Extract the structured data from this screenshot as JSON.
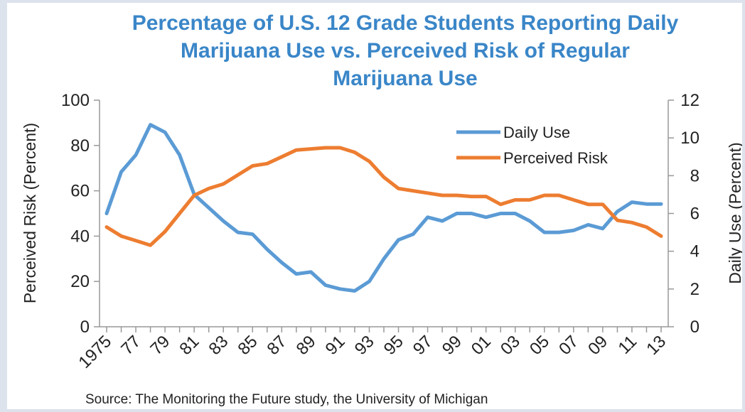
{
  "chart_data": {
    "type": "line",
    "title_lines": [
      "Percentage of U.S. 12 Grade Students Reporting Daily",
      "Marijuana Use vs. Perceived Risk of Regular",
      "Marijuana Use"
    ],
    "ylabel": "Perceived Risk (Percent)",
    "y2label": "Daily Use (Percent)",
    "ylim": [
      0,
      100
    ],
    "y2lim": [
      0,
      12
    ],
    "yticks": [
      "0",
      "20",
      "40",
      "60",
      "80",
      "100"
    ],
    "y2ticks": [
      "0",
      "2",
      "4",
      "6",
      "8",
      "10",
      "12"
    ],
    "x": [
      1975,
      1976,
      1977,
      1978,
      1979,
      1980,
      1981,
      1982,
      1983,
      1984,
      1985,
      1986,
      1987,
      1988,
      1989,
      1990,
      1991,
      1992,
      1993,
      1994,
      1995,
      1996,
      1997,
      1998,
      1999,
      2000,
      2001,
      2002,
      2003,
      2004,
      2005,
      2006,
      2007,
      2008,
      2009,
      2010,
      2011,
      2012,
      2013
    ],
    "xtick_labels": [
      {
        "x": 1975,
        "label": "1975"
      },
      {
        "x": 1977,
        "label": "77"
      },
      {
        "x": 1979,
        "label": "79"
      },
      {
        "x": 1981,
        "label": "81"
      },
      {
        "x": 1983,
        "label": "83"
      },
      {
        "x": 1985,
        "label": "85"
      },
      {
        "x": 1987,
        "label": "87"
      },
      {
        "x": 1989,
        "label": "89"
      },
      {
        "x": 1991,
        "label": "91"
      },
      {
        "x": 1993,
        "label": "93"
      },
      {
        "x": 1995,
        "label": "95"
      },
      {
        "x": 1997,
        "label": "97"
      },
      {
        "x": 1999,
        "label": "99"
      },
      {
        "x": 2001,
        "label": "01"
      },
      {
        "x": 2003,
        "label": "03"
      },
      {
        "x": 2005,
        "label": "05"
      },
      {
        "x": 2007,
        "label": "07"
      },
      {
        "x": 2009,
        "label": "09"
      },
      {
        "x": 2011,
        "label": "11"
      },
      {
        "x": 2013,
        "label": "13"
      }
    ],
    "legend_position": "top-right",
    "series": [
      {
        "name": "Daily Use",
        "axis": "right",
        "color": "#5b9bd5",
        "values": [
          6.0,
          8.2,
          9.1,
          10.7,
          10.3,
          9.1,
          7.0,
          6.3,
          5.6,
          5.0,
          4.9,
          4.1,
          3.4,
          2.8,
          2.9,
          2.2,
          2.0,
          1.9,
          2.4,
          3.6,
          4.6,
          4.9,
          5.8,
          5.6,
          6.0,
          6.0,
          5.8,
          6.0,
          6.0,
          5.6,
          5.0,
          5.0,
          5.1,
          5.4,
          5.2,
          6.1,
          6.6,
          6.5,
          6.5
        ]
      },
      {
        "name": "Perceived Risk",
        "axis": "left",
        "color": "#ed7d31",
        "values": [
          44,
          40,
          38,
          36,
          42,
          50,
          58,
          61,
          63,
          67,
          71,
          72,
          75,
          78,
          78.5,
          79,
          79,
          77,
          73,
          66,
          61,
          60,
          59,
          58,
          58,
          57.5,
          57.5,
          54,
          56,
          56,
          58,
          58,
          56,
          54,
          54,
          47,
          46,
          44,
          40
        ]
      }
    ],
    "source": "Source: The Monitoring the Future study, the University of Michigan"
  }
}
